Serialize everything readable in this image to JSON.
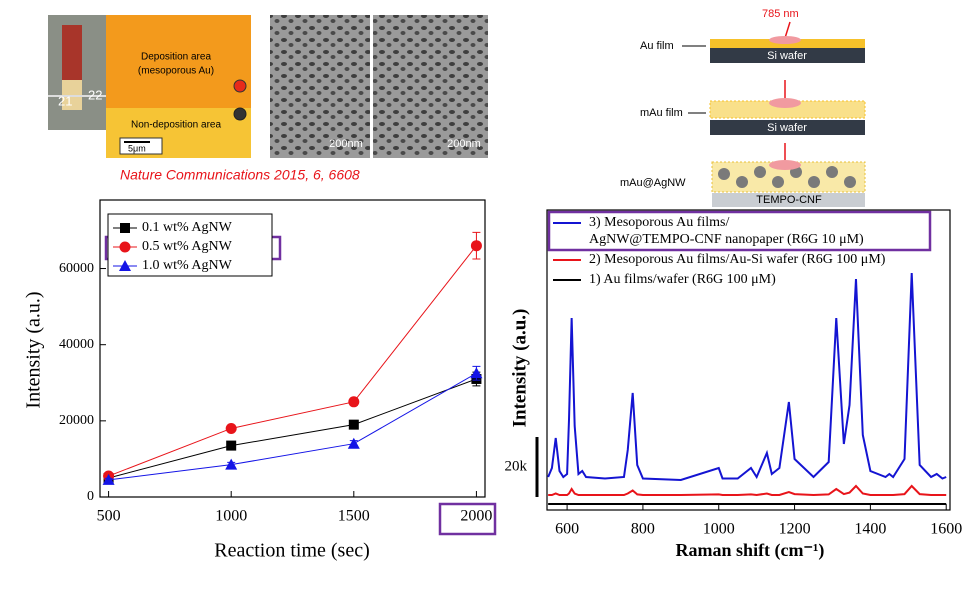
{
  "figure": {
    "photo_ruler": [
      "21",
      "22"
    ],
    "deposition_area": [
      "Deposition area",
      "(mesoporous Au)"
    ],
    "non_deposition_area": "Non-deposition area",
    "photo_scale": "5μm",
    "sem_scale": [
      "200nm",
      "200nm"
    ],
    "citation": "Nature Communications 2015, 6, 6608",
    "schematic": {
      "laser": "785 nm",
      "layers": [
        {
          "label": "Au film",
          "substrate": "Si wafer"
        },
        {
          "label": "mAu film",
          "substrate": "Si wafer"
        },
        {
          "label": "mAu@AgNW",
          "substrate": "TEMPO-CNF"
        }
      ]
    }
  },
  "chart_data": [
    {
      "type": "line",
      "xlabel": "Reaction time (sec)",
      "ylabel": "Intensity (a.u.)",
      "x": [
        500,
        1000,
        1500,
        2000
      ],
      "xlim": [
        465,
        2035
      ],
      "xticks": [
        500,
        1000,
        1500,
        2000
      ],
      "ylim": [
        0,
        78000
      ],
      "yticks": [
        0,
        20000,
        40000,
        60000
      ],
      "series": [
        {
          "name": "0.1 wt% AgNW",
          "color": "#000000",
          "marker": "square",
          "values": [
            5000,
            13500,
            19000,
            31000
          ],
          "errors": [
            500,
            800,
            800,
            1800
          ]
        },
        {
          "name": "0.5 wt% AgNW",
          "color": "#e8141a",
          "marker": "circle",
          "values": [
            5500,
            18000,
            25000,
            66000
          ],
          "errors": [
            500,
            800,
            900,
            3500
          ]
        },
        {
          "name": "1.0 wt% AgNW",
          "color": "#1414e6",
          "marker": "triangle",
          "values": [
            4500,
            8500,
            14000,
            32500
          ],
          "errors": [
            400,
            600,
            800,
            1800
          ]
        }
      ]
    },
    {
      "type": "line",
      "xlabel": "Raman shift (cm⁻¹)",
      "ylabel": "Intensity (a.u.)",
      "x": [
        550,
        560,
        570,
        580,
        590,
        600,
        605,
        612,
        620,
        630,
        640,
        650,
        700,
        750,
        760,
        773,
        785,
        800,
        900,
        1000,
        1010,
        1050,
        1085,
        1100,
        1127,
        1140,
        1160,
        1185,
        1200,
        1250,
        1290,
        1310,
        1330,
        1345,
        1362,
        1380,
        1400,
        1440,
        1450,
        1460,
        1490,
        1509,
        1530,
        1560,
        1575,
        1590,
        1600
      ],
      "xlim": [
        547,
        1610
      ],
      "xticks": [
        600,
        800,
        1000,
        1200,
        1400,
        1600
      ],
      "ylim": [
        0,
        100
      ],
      "scale_bar": {
        "label": "20k",
        "value": 20
      },
      "series": [
        {
          "name": "3) Mesoporous Au films/\nAgNW@TEMPO-CNF nanopaper (R6G 10 μM)",
          "color": "#1414d2",
          "values": [
            11,
            14,
            24,
            13,
            11,
            12,
            30,
            64,
            28,
            12,
            13,
            11,
            10.5,
            11,
            20,
            39,
            15,
            10.5,
            10,
            14,
            10.5,
            10.5,
            14,
            11,
            19,
            12,
            14,
            36,
            17,
            11,
            16,
            64,
            22,
            35,
            77,
            25,
            13,
            11,
            12,
            11,
            17,
            79,
            15,
            11,
            12,
            10.5,
            11
          ]
        },
        {
          "name": "2) Mesoporous Au films/Au-Si wafer (R6G 100 μM)",
          "color": "#e8141a",
          "values": [
            5,
            5,
            5.5,
            5,
            5,
            5,
            5.5,
            7,
            5.5,
            5,
            5,
            5,
            5,
            5,
            5.5,
            6.5,
            5.2,
            5,
            5,
            5.2,
            5,
            5,
            5.2,
            5,
            5.5,
            5,
            5,
            6,
            5.3,
            5,
            5.2,
            7,
            5.3,
            5.8,
            8,
            5.5,
            5,
            5,
            5,
            5,
            5.3,
            8,
            5.3,
            5,
            5,
            5,
            5
          ]
        },
        {
          "name": "1) Au films/wafer (R6G 100 μM)",
          "color": "#000000",
          "values": [
            2,
            2,
            2,
            2,
            2,
            2,
            2,
            2,
            2,
            2,
            2,
            2,
            2,
            2,
            2,
            2,
            2,
            2,
            2,
            2,
            2,
            2,
            2,
            2,
            2,
            2,
            2,
            2,
            2,
            2,
            2,
            2,
            2,
            2,
            2,
            2,
            2,
            2,
            2,
            2,
            2,
            2,
            2,
            2,
            2,
            2,
            2
          ]
        }
      ]
    }
  ]
}
